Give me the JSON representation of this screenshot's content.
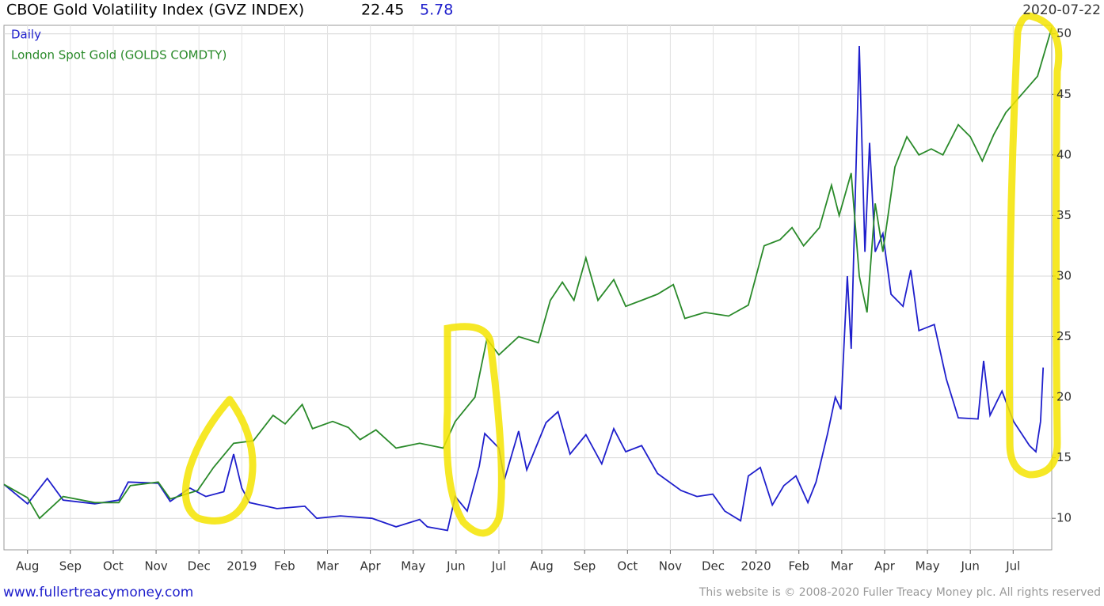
{
  "chart_data": {
    "type": "line",
    "title": "CBOE Gold Volatility Index (GVZ INDEX)",
    "last_value": 22.45,
    "change": 5.78,
    "date": "2020-07-22",
    "footer_left": "www.fullertreacymoney.com",
    "footer_right": "This website is © 2008-2020 Fuller Treacy Money plc. All rights reserved",
    "xlim": [
      -0.55,
      23.9
    ],
    "xticks": [
      {
        "value": 0,
        "label": "Aug"
      },
      {
        "value": 1,
        "label": "Sep"
      },
      {
        "value": 2,
        "label": "Oct"
      },
      {
        "value": 3,
        "label": "Nov"
      },
      {
        "value": 4,
        "label": "Dec"
      },
      {
        "value": 5,
        "label": "2019"
      },
      {
        "value": 6,
        "label": "Feb"
      },
      {
        "value": 7,
        "label": "Mar"
      },
      {
        "value": 8,
        "label": "Apr"
      },
      {
        "value": 9,
        "label": "May"
      },
      {
        "value": 10,
        "label": "Jun"
      },
      {
        "value": 11,
        "label": "Jul"
      },
      {
        "value": 12,
        "label": "Aug"
      },
      {
        "value": 13,
        "label": "Sep"
      },
      {
        "value": 14,
        "label": "Oct"
      },
      {
        "value": 15,
        "label": "Nov"
      },
      {
        "value": 16,
        "label": "Dec"
      },
      {
        "value": 17,
        "label": "2020"
      },
      {
        "value": 18,
        "label": "Feb"
      },
      {
        "value": 19,
        "label": "Mar"
      },
      {
        "value": 20,
        "label": "Apr"
      },
      {
        "value": 21,
        "label": "May"
      },
      {
        "value": 22,
        "label": "Jun"
      },
      {
        "value": 23,
        "label": "Jul"
      }
    ],
    "ylim": [
      7.4,
      50.7
    ],
    "yticks": [
      10,
      15,
      20,
      25,
      30,
      35,
      40,
      45,
      50
    ],
    "grid": true,
    "series": [
      {
        "name": "Daily",
        "color": "#1f1fcc",
        "x": [
          -0.55,
          0,
          0.46,
          0.83,
          1.57,
          2.13,
          2.35,
          3.05,
          3.33,
          3.79,
          4.16,
          4.58,
          4.81,
          5.0,
          5.18,
          5.82,
          6.47,
          6.75,
          7.3,
          8.04,
          8.6,
          9.15,
          9.33,
          9.8,
          9.98,
          10.26,
          10.54,
          10.67,
          11.0,
          11.13,
          11.46,
          11.65,
          12.1,
          12.38,
          12.66,
          13.03,
          13.4,
          13.68,
          13.96,
          14.33,
          14.7,
          15.25,
          15.62,
          15.99,
          16.27,
          16.64,
          16.82,
          17.1,
          17.38,
          17.65,
          17.93,
          18.21,
          18.4,
          18.67,
          18.85,
          18.98,
          19.13,
          19.22,
          19.41,
          19.54,
          19.65,
          19.78,
          19.96,
          20.15,
          20.43,
          20.61,
          20.8,
          21.16,
          21.44,
          21.72,
          22.18,
          22.31,
          22.46,
          22.74,
          23.01,
          23.38,
          23.53,
          23.64,
          23.7
        ],
        "values": [
          12.8,
          11.2,
          13.3,
          11.5,
          11.2,
          11.5,
          13.0,
          12.9,
          11.4,
          12.5,
          11.8,
          12.2,
          15.3,
          12.5,
          11.3,
          10.8,
          11.0,
          10.0,
          10.2,
          10.0,
          9.3,
          9.9,
          9.3,
          9.0,
          11.8,
          10.6,
          14.3,
          17.0,
          15.8,
          13.2,
          17.2,
          14.0,
          17.9,
          18.8,
          15.3,
          16.9,
          14.5,
          17.4,
          15.5,
          16.0,
          13.7,
          12.3,
          11.8,
          12.0,
          10.6,
          9.8,
          13.5,
          14.2,
          11.1,
          12.7,
          13.5,
          11.3,
          13.0,
          17.0,
          20.0,
          19.0,
          30.0,
          24.0,
          49.0,
          32.0,
          41.0,
          32.0,
          33.5,
          28.5,
          27.5,
          30.5,
          25.5,
          26.0,
          21.5,
          18.3,
          18.2,
          23.0,
          18.5,
          20.5,
          18.0,
          16.0,
          15.5,
          18.0,
          22.45
        ]
      },
      {
        "name": "London Spot Gold (GOLDS COMDTY)",
        "color": "#2a8a2a",
        "x": [
          -0.55,
          0,
          0.28,
          0.83,
          1.57,
          2.13,
          2.4,
          3.05,
          3.33,
          3.97,
          4.34,
          4.81,
          5.27,
          5.73,
          6.01,
          6.41,
          6.65,
          7.12,
          7.49,
          7.76,
          8.13,
          8.6,
          9.15,
          9.7,
          9.98,
          10.44,
          10.72,
          11.0,
          11.46,
          11.92,
          12.2,
          12.48,
          12.75,
          13.03,
          13.31,
          13.68,
          13.96,
          14.33,
          14.7,
          15.07,
          15.34,
          15.81,
          16.36,
          16.82,
          17.19,
          17.56,
          17.84,
          18.11,
          18.48,
          18.76,
          18.94,
          19.22,
          19.41,
          19.59,
          19.78,
          19.96,
          20.24,
          20.52,
          20.8,
          21.09,
          21.36,
          21.72,
          22.0,
          22.28,
          22.55,
          22.83,
          23.2,
          23.57,
          23.9
        ],
        "values": [
          12.8,
          11.7,
          10.0,
          11.8,
          11.3,
          11.3,
          12.7,
          13.0,
          11.6,
          12.3,
          14.2,
          16.2,
          16.4,
          18.5,
          17.8,
          19.4,
          17.4,
          18.0,
          17.5,
          16.5,
          17.3,
          15.8,
          16.2,
          15.8,
          18.0,
          20.0,
          24.8,
          23.5,
          25.0,
          24.5,
          28.0,
          29.5,
          28.0,
          31.5,
          28.0,
          29.7,
          27.5,
          28.0,
          28.5,
          29.3,
          26.5,
          27.0,
          26.7,
          27.6,
          32.5,
          33.0,
          34.0,
          32.5,
          34.0,
          37.5,
          35.0,
          38.5,
          30.0,
          27.0,
          36.0,
          32.0,
          39.0,
          41.5,
          40.0,
          40.5,
          40.0,
          42.5,
          41.5,
          39.5,
          41.7,
          43.5,
          45.0,
          46.5,
          50.5
        ]
      }
    ]
  }
}
